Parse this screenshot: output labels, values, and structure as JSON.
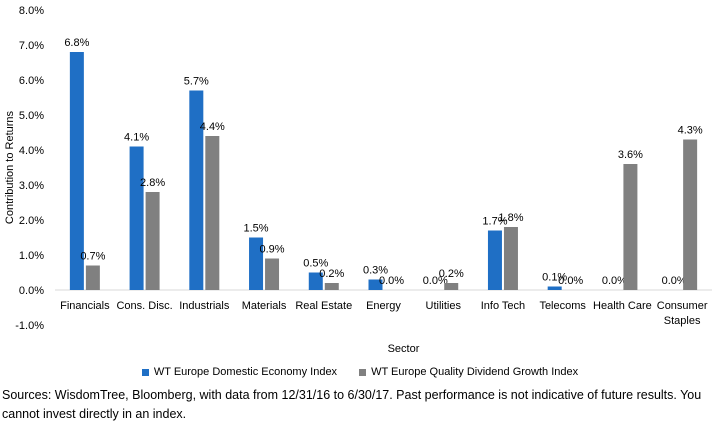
{
  "chart_data": {
    "type": "bar",
    "title": "",
    "xlabel": "Sector",
    "ylabel": "Contribution to Returns",
    "ylim": [
      -1.0,
      8.0
    ],
    "yticks": [
      "8.0%",
      "7.0%",
      "6.0%",
      "5.0%",
      "4.0%",
      "3.0%",
      "2.0%",
      "1.0%",
      "0.0%",
      "-1.0%"
    ],
    "categories": [
      "Financials",
      "Cons. Disc.",
      "Industrials",
      "Materials",
      "Real Estate",
      "Energy",
      "Utilities",
      "Info Tech",
      "Telecoms",
      "Health Care",
      "Consumer Staples"
    ],
    "series": [
      {
        "name": "WT Europe Domestic Economy Index",
        "color": "#1f6fc5",
        "values": [
          6.8,
          4.1,
          5.7,
          1.5,
          0.5,
          0.3,
          0.0,
          1.7,
          0.1,
          0.0,
          0.0
        ],
        "labels": [
          "6.8%",
          "4.1%",
          "5.7%",
          "1.5%",
          "0.5%",
          "0.3%",
          "0.0%",
          "1.7%",
          "0.1%",
          "0.0%",
          "0.0%"
        ]
      },
      {
        "name": "WT Europe Quality Dividend Growth Index",
        "color": "#808080",
        "values": [
          0.7,
          2.8,
          4.4,
          0.9,
          0.2,
          0.0,
          0.2,
          1.8,
          0.0,
          3.6,
          4.3
        ],
        "labels": [
          "0.7%",
          "2.8%",
          "4.4%",
          "0.9%",
          "0.2%",
          "0.0%",
          "0.2%",
          "1.8%",
          "0.0%",
          "3.6%",
          "4.3%"
        ]
      }
    ],
    "grid": false,
    "legend_position": "bottom"
  },
  "footnote": "Sources: WisdomTree, Bloomberg, with data from 12/31/16 to 6/30/17. Past performance is not indicative of future results. You cannot invest directly in an index."
}
